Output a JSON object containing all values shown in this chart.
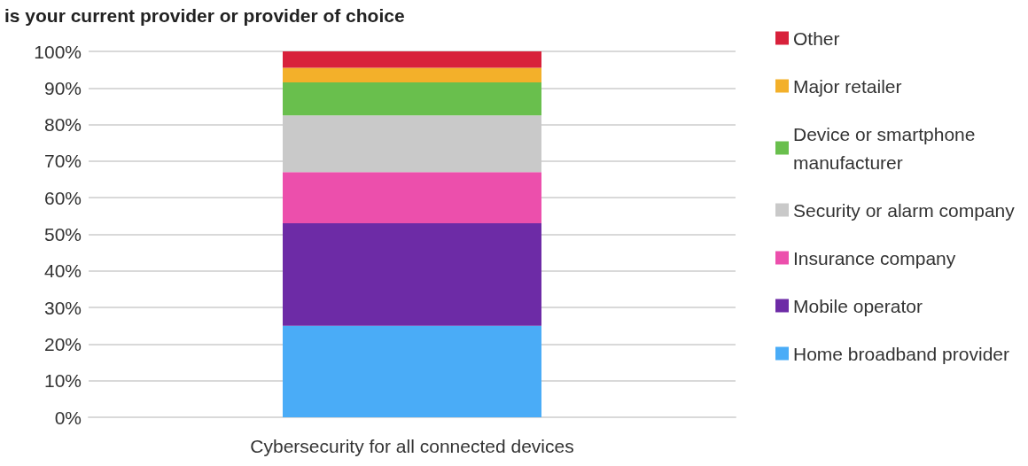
{
  "chart_data": {
    "type": "bar",
    "stacked": true,
    "title": "is your current provider or provider of choice",
    "categories": [
      "Cybersecurity for all connected devices"
    ],
    "series": [
      {
        "name": "Home broadband provider",
        "color": "#4aacf7",
        "values": [
          25
        ]
      },
      {
        "name": "Mobile operator",
        "color": "#6d2ba6",
        "values": [
          28
        ]
      },
      {
        "name": "Insurance company",
        "color": "#ec4fac",
        "values": [
          14
        ]
      },
      {
        "name": "Security or alarm company",
        "color": "#c9c9c9",
        "values": [
          15.5
        ]
      },
      {
        "name": "Device or smartphone manufacturer",
        "color": "#69bf4d",
        "values": [
          9
        ]
      },
      {
        "name": "Major retailer",
        "color": "#f3b02a",
        "values": [
          4
        ]
      },
      {
        "name": "Other",
        "color": "#d8213b",
        "values": [
          4.5
        ]
      }
    ],
    "ylim": [
      0,
      100
    ],
    "yticks": [
      {
        "value": 0,
        "label": "0%"
      },
      {
        "value": 10,
        "label": "10%"
      },
      {
        "value": 20,
        "label": "20%"
      },
      {
        "value": 30,
        "label": "30%"
      },
      {
        "value": 40,
        "label": "40%"
      },
      {
        "value": 50,
        "label": "50%"
      },
      {
        "value": 60,
        "label": "60%"
      },
      {
        "value": 70,
        "label": "70%"
      },
      {
        "value": 80,
        "label": "80%"
      },
      {
        "value": 90,
        "label": "90%"
      },
      {
        "value": 100,
        "label": "100%"
      }
    ],
    "grid": "y",
    "legend": "right"
  }
}
